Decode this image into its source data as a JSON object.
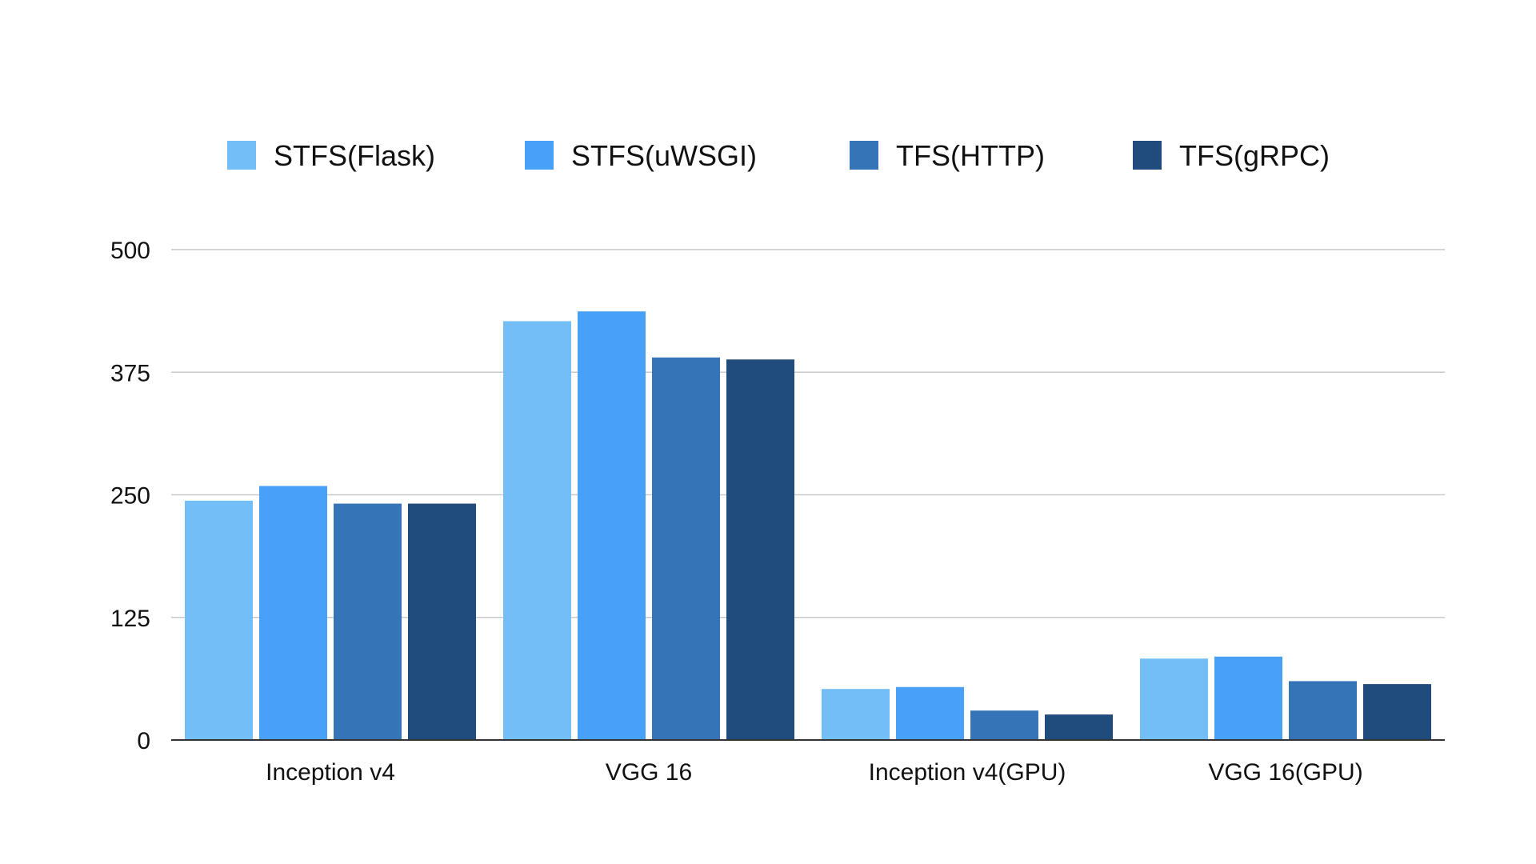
{
  "chart_data": {
    "type": "bar",
    "categories": [
      "Inception v4",
      "VGG 16",
      "Inception v4(GPU)",
      "VGG 16(GPU)"
    ],
    "series": [
      {
        "name": "STFS(Flask)",
        "color": "#74BEF8",
        "values": [
          244,
          427,
          52,
          83
        ]
      },
      {
        "name": "STFS(uWSGI)",
        "color": "#48A0F7",
        "values": [
          259,
          437,
          54,
          85
        ]
      },
      {
        "name": "TFS(HTTP)",
        "color": "#3474B7",
        "values": [
          241,
          390,
          30,
          60
        ]
      },
      {
        "name": "TFS(gRPC)",
        "color": "#1F4C7D",
        "values": [
          241,
          388,
          26,
          57
        ]
      }
    ],
    "ylim": [
      0,
      500
    ],
    "yticks": [
      "0",
      "125",
      "250",
      "375",
      "500"
    ],
    "grid": true,
    "legend_position": "top",
    "title": "",
    "xlabel": "",
    "ylabel": ""
  }
}
